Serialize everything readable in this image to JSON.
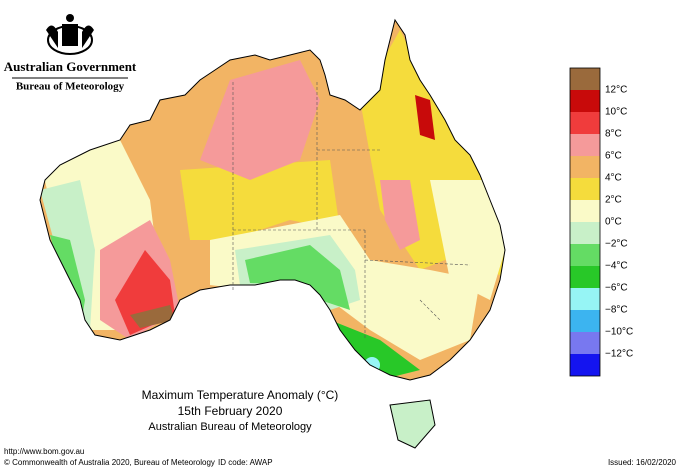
{
  "header": {
    "government": "Australian Government",
    "bureau": "Bureau of Meteorology"
  },
  "title": {
    "line1": "Maximum Temperature Anomaly (°C)",
    "line2": "15th February 2020",
    "line3": "Australian Bureau of Meteorology"
  },
  "legend": {
    "labels": [
      "12°C",
      "10°C",
      "8°C",
      "6°C",
      "4°C",
      "2°C",
      "0°C",
      "−2°C",
      "−4°C",
      "−6°C",
      "−8°C",
      "−10°C",
      "−12°C"
    ],
    "colors": [
      "#9a6a3c",
      "#c80a0a",
      "#f03c3c",
      "#f59a9a",
      "#f2b464",
      "#f5dc3c",
      "#fafac8",
      "#c8f0c8",
      "#64dc64",
      "#28c828",
      "#96f5f5",
      "#3cb4f0",
      "#7878f0",
      "#1414f0"
    ]
  },
  "footer": {
    "url": "http://www.bom.gov.au",
    "copyright": "© Commonwealth of Australia 2020, Bureau of Meteorology",
    "id_code": "ID code: AWAP",
    "issued": "Issued: 16/02/2020"
  }
}
